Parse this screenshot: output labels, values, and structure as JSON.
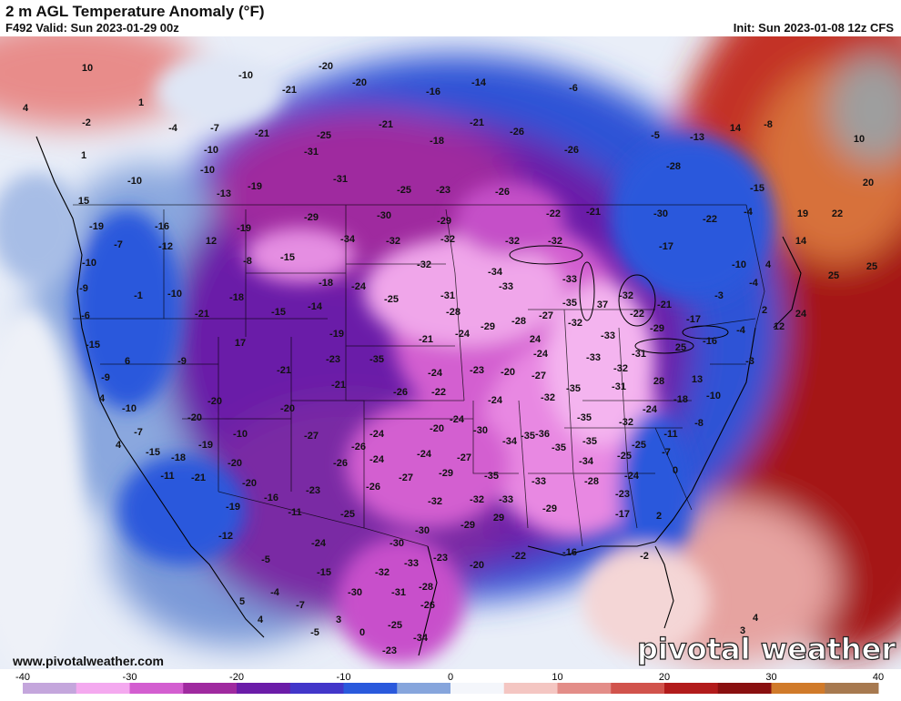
{
  "header": {
    "title": "2 m AGL Temperature Anomaly (°F)",
    "valid": "F492 Valid: Sun 2023-01-29 00z",
    "init": "Init: Sun 2023-01-08 12z CFS"
  },
  "footer": {
    "website": "www.pivotalweather.com",
    "brand": "pivotal weather"
  },
  "colorbar": {
    "ticks": [
      -40,
      -30,
      -20,
      -10,
      0,
      10,
      20,
      30,
      40
    ],
    "stops": [
      {
        "v": -40,
        "c": "#c4a6dc"
      },
      {
        "v": -35,
        "c": "#f4a9ef"
      },
      {
        "v": -30,
        "c": "#d35ed0"
      },
      {
        "v": -25,
        "c": "#9f2a9f"
      },
      {
        "v": -20,
        "c": "#6b1ca8"
      },
      {
        "v": -15,
        "c": "#4236c9"
      },
      {
        "v": -10,
        "c": "#2a59dc"
      },
      {
        "v": -5,
        "c": "#86a5dc"
      },
      {
        "v": 0,
        "c": "#f4f6fb"
      },
      {
        "v": 5,
        "c": "#f4c6c2"
      },
      {
        "v": 10,
        "c": "#e38d88"
      },
      {
        "v": 15,
        "c": "#d1534c"
      },
      {
        "v": 20,
        "c": "#b21b1b"
      },
      {
        "v": 25,
        "c": "#891010"
      },
      {
        "v": 30,
        "c": "#d07a2a"
      },
      {
        "v": 35,
        "c": "#a7794f"
      },
      {
        "v": 40,
        "c": "#9a9a9a"
      }
    ]
  },
  "map_labels": [
    "-34",
    "-33",
    "-35",
    "-37",
    "-32",
    "-31",
    "-30",
    "-29",
    "-28",
    "-27",
    "-26",
    "-25",
    "-24",
    "-23",
    "-22",
    "-21",
    "-20",
    "-19",
    "-18",
    "-17",
    "-16",
    "-15",
    "-14",
    "-13",
    "-12",
    "-11",
    "-10",
    "-9",
    "-8",
    "-7",
    "-6",
    "-5",
    "-4",
    "-3",
    "-2",
    "-1",
    "0",
    "1",
    "2",
    "3",
    "4",
    "5",
    "6",
    "10",
    "12",
    "13",
    "14",
    "15",
    "16",
    "17",
    "18",
    "20",
    "22",
    "24",
    "25",
    "28",
    "29",
    "30"
  ]
}
